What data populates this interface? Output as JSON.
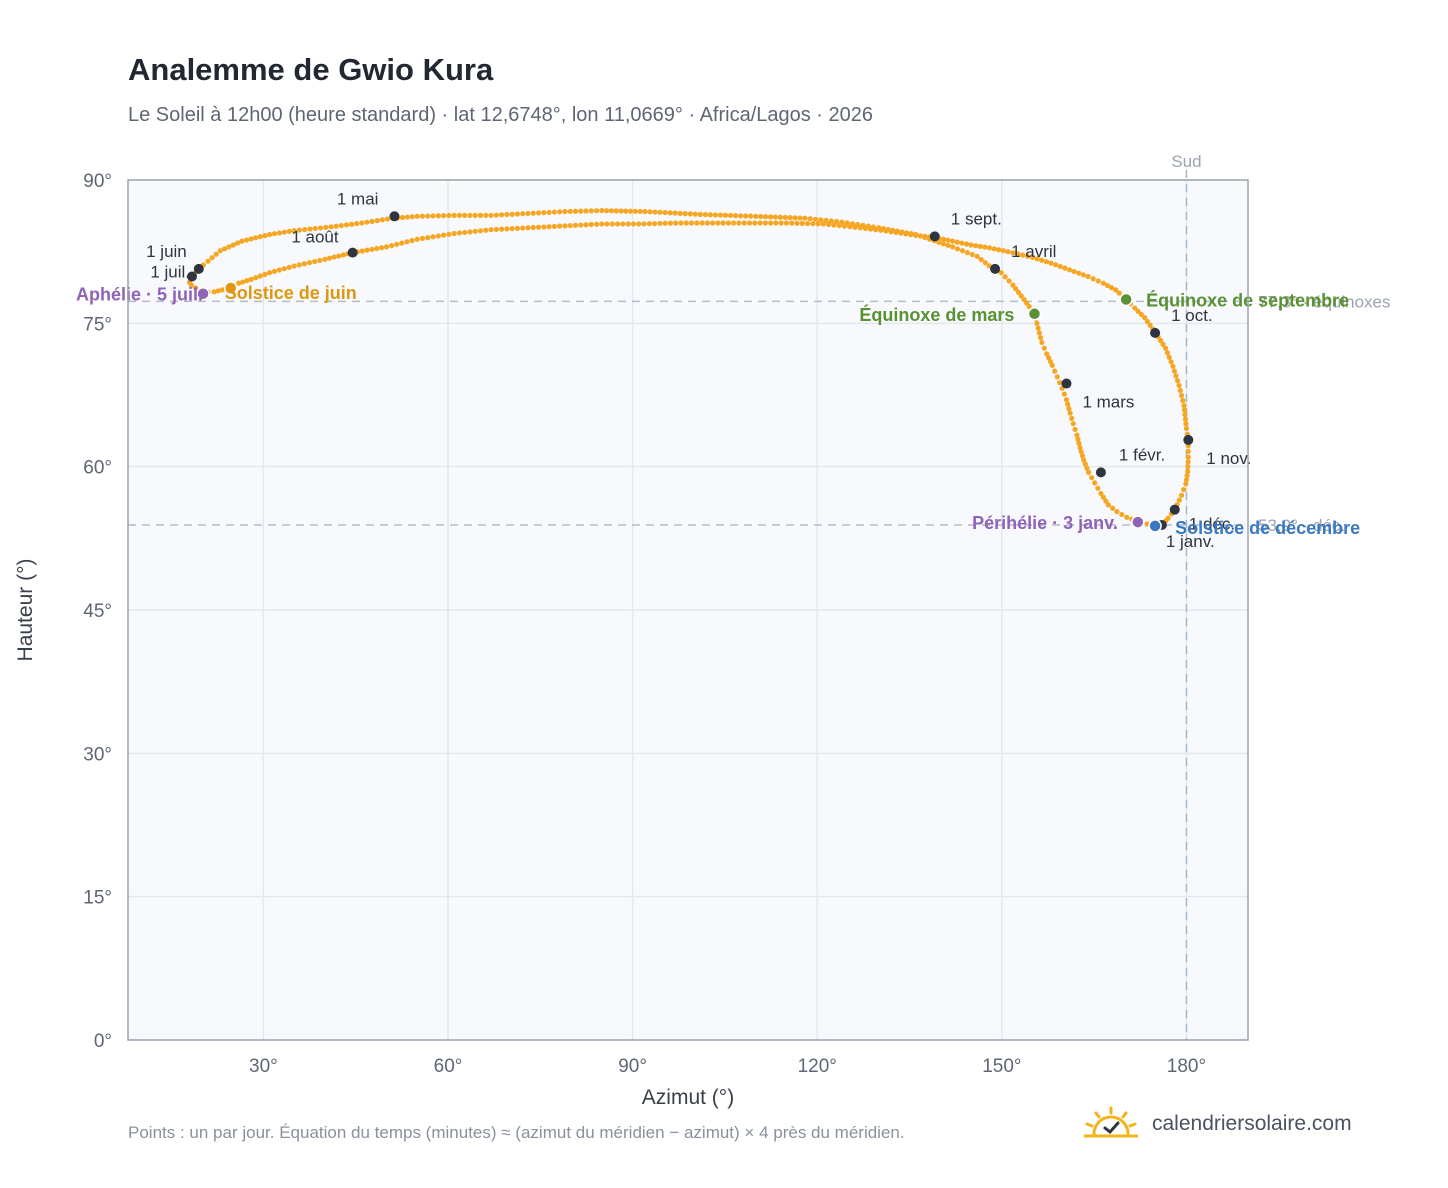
{
  "chart_data": {
    "type": "scatter",
    "title": "Analemme de Gwio Kura",
    "subtitle": "Le Soleil à 12h00 (heure standard) · lat 12,6748°, lon 11,0669° · Africa/Lagos · 2026",
    "xlabel": "Azimut (°)",
    "ylabel": "Hauteur (°)",
    "xlim": [
      8,
      190
    ],
    "ylim": [
      0,
      90
    ],
    "x_ticks": [
      30,
      60,
      90,
      120,
      150,
      180
    ],
    "y_ticks": [
      0,
      15,
      30,
      45,
      60,
      75,
      90
    ],
    "x_tick_suffix": "°",
    "y_tick_suffix": "°",
    "grid": true,
    "colors": {
      "series": "#f5a623",
      "month_marker": "#2f3540",
      "equinox": "#5a9132",
      "june_solstice": "#e0960f",
      "december_solstice": "#3a78c0",
      "apsis": "#8e63b8",
      "reference_line": "#b3bcc8",
      "south_line": "#a7b8c8",
      "plot_bg": "#f7f9fc"
    },
    "reference_lines": [
      {
        "axis": "y",
        "value": 77.3,
        "label": "77,3° · équinoxes"
      },
      {
        "axis": "y",
        "value": 53.9,
        "label": "53,9° · déc."
      },
      {
        "axis": "x",
        "value": 180,
        "label": "Sud"
      }
    ],
    "series": [
      {
        "points": [
          [
            175.3,
            53.8
          ],
          [
            173.6,
            54.0
          ],
          [
            171.9,
            54.3
          ],
          [
            170.3,
            54.7
          ],
          [
            168.7,
            55.3
          ],
          [
            167.3,
            56.0
          ],
          [
            166.1,
            57.2
          ],
          [
            165.1,
            58.3
          ],
          [
            164.1,
            59.4
          ],
          [
            163.3,
            60.7
          ],
          [
            162.7,
            62.0
          ],
          [
            162.2,
            63.3
          ],
          [
            161.6,
            64.5
          ],
          [
            161.1,
            65.6
          ],
          [
            160.5,
            67.0
          ],
          [
            159.8,
            68.2
          ],
          [
            159.0,
            69.4
          ],
          [
            158.2,
            70.6
          ],
          [
            157.3,
            71.8
          ],
          [
            156.5,
            73.0
          ],
          [
            155.3,
            76.0
          ],
          [
            153.6,
            77.5
          ],
          [
            151.8,
            79.0
          ],
          [
            149.9,
            80.3
          ],
          [
            148.6,
            80.7
          ],
          [
            146.0,
            82.0
          ],
          [
            142.0,
            83.0
          ],
          [
            136.0,
            84.3
          ],
          [
            130.0,
            85.0
          ],
          [
            124.0,
            85.6
          ],
          [
            118.0,
            86.0
          ],
          [
            110.0,
            86.2
          ],
          [
            101.0,
            86.4
          ],
          [
            92.0,
            86.7
          ],
          [
            85.0,
            86.8
          ],
          [
            79.0,
            86.7
          ],
          [
            73.0,
            86.5
          ],
          [
            67.0,
            86.3
          ],
          [
            61.0,
            86.3
          ],
          [
            55.0,
            86.2
          ],
          [
            51.0,
            86.0
          ],
          [
            46.0,
            85.5
          ],
          [
            41.0,
            85.1
          ],
          [
            35.0,
            84.7
          ],
          [
            31.0,
            84.3
          ],
          [
            26.5,
            83.6
          ],
          [
            23.0,
            82.6
          ],
          [
            21.0,
            81.5
          ],
          [
            19.5,
            80.7
          ],
          [
            18.4,
            79.9
          ],
          [
            18.0,
            79.3
          ],
          [
            18.3,
            79.0
          ],
          [
            19.0,
            78.7
          ],
          [
            20.0,
            78.5
          ],
          [
            21.0,
            78.3
          ],
          [
            22.0,
            78.3
          ],
          [
            23.3,
            78.5
          ],
          [
            24.5,
            78.7
          ],
          [
            26.0,
            79.2
          ],
          [
            28.0,
            79.6
          ],
          [
            31.0,
            80.3
          ],
          [
            35.0,
            81.0
          ],
          [
            40.0,
            81.7
          ],
          [
            44.5,
            82.4
          ],
          [
            50.0,
            83.0
          ],
          [
            55.0,
            83.8
          ],
          [
            61.0,
            84.4
          ],
          [
            67.0,
            84.8
          ],
          [
            73.0,
            85.0
          ],
          [
            79.0,
            85.2
          ],
          [
            85.0,
            85.4
          ],
          [
            91.0,
            85.4
          ],
          [
            97.0,
            85.5
          ],
          [
            103.0,
            85.5
          ],
          [
            109.0,
            85.5
          ],
          [
            115.0,
            85.5
          ],
          [
            121.0,
            85.4
          ],
          [
            127.0,
            85.0
          ],
          [
            132.0,
            84.6
          ],
          [
            136.0,
            84.2
          ],
          [
            139.0,
            84.0
          ],
          [
            142.0,
            83.6
          ],
          [
            145.0,
            83.2
          ],
          [
            148.0,
            82.9
          ],
          [
            151.0,
            82.5
          ],
          [
            155.0,
            81.9
          ],
          [
            158.0,
            81.3
          ],
          [
            161.0,
            80.6
          ],
          [
            164.0,
            79.9
          ],
          [
            166.5,
            79.2
          ],
          [
            168.5,
            78.5
          ],
          [
            170.2,
            77.5
          ],
          [
            171.6,
            76.6
          ],
          [
            173.2,
            75.6
          ],
          [
            175.0,
            74.0
          ],
          [
            176.6,
            72.4
          ],
          [
            177.8,
            70.5
          ],
          [
            178.8,
            68.5
          ],
          [
            179.6,
            66.4
          ],
          [
            180.0,
            64.0
          ],
          [
            180.3,
            62.8
          ],
          [
            180.3,
            61.0
          ],
          [
            180.2,
            59.5
          ],
          [
            179.9,
            58.2
          ],
          [
            179.2,
            57.0
          ],
          [
            178.1,
            55.5
          ],
          [
            177.0,
            54.6
          ],
          [
            176.2,
            54.0
          ]
        ]
      }
    ],
    "month_markers": [
      {
        "label": "1 janv.",
        "x": 176.0,
        "y": 53.9
      },
      {
        "label": "1 févr.",
        "x": 166.1,
        "y": 59.4
      },
      {
        "label": "1 mars",
        "x": 160.5,
        "y": 68.7
      },
      {
        "label": "1 avril",
        "x": 148.9,
        "y": 80.7
      },
      {
        "label": "1 mai",
        "x": 51.3,
        "y": 86.2
      },
      {
        "label": "1 juin",
        "x": 19.5,
        "y": 80.7
      },
      {
        "label": "1 juil.",
        "x": 18.4,
        "y": 79.9
      },
      {
        "label": "1 août",
        "x": 44.5,
        "y": 82.4
      },
      {
        "label": "1 sept.",
        "x": 139.1,
        "y": 84.1
      },
      {
        "label": "1 oct.",
        "x": 174.9,
        "y": 74.0
      },
      {
        "label": "1 nov.",
        "x": 180.3,
        "y": 62.8
      },
      {
        "label": "1 déc.",
        "x": 178.1,
        "y": 55.5
      }
    ],
    "events": [
      {
        "label": "Équinoxe de mars",
        "x": 155.3,
        "y": 76.0,
        "kind": "equinox"
      },
      {
        "label": "Équinoxe de septembre",
        "x": 170.2,
        "y": 77.5,
        "kind": "equinox"
      },
      {
        "label": "Solstice de juin",
        "x": 24.7,
        "y": 78.7,
        "kind": "june_solstice"
      },
      {
        "label": "Solstice de décembre",
        "x": 174.9,
        "y": 53.8,
        "kind": "december_solstice"
      },
      {
        "label": "Périhélie · 3 janv.",
        "x": 172.1,
        "y": 54.2,
        "kind": "apsis"
      },
      {
        "label": "Aphélie · 5 juil.",
        "x": 20.2,
        "y": 78.1,
        "kind": "apsis"
      }
    ]
  },
  "footer": {
    "note": "Points : un par jour. Équation du temps (minutes) ≈ (azimut du méridien − azimut) × 4 près du méridien.",
    "brand": "calendriersolaire.com",
    "brand_icon": "sun-check-icon"
  }
}
